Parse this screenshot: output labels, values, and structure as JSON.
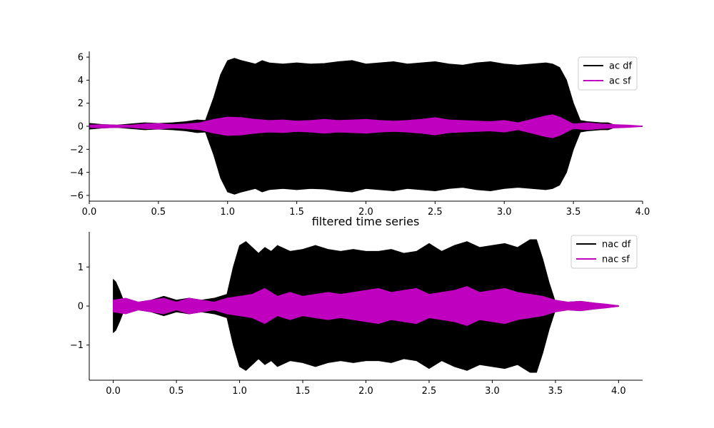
{
  "figure_title": "filtered time series",
  "chart_data": [
    {
      "type": "line",
      "title": "",
      "xlabel": "",
      "ylabel": "",
      "xlim": [
        0.0,
        4.0
      ],
      "ylim": [
        -6.5,
        6.5
      ],
      "xticks": [
        0.0,
        0.5,
        1.0,
        1.5,
        2.0,
        2.5,
        3.0,
        3.5,
        4.0
      ],
      "xtick_labels": [
        "0.0",
        "0.5",
        "1.0",
        "1.5",
        "2.0",
        "2.5",
        "3.0",
        "3.5",
        "4.0"
      ],
      "yticks": [
        -6,
        -4,
        -2,
        0,
        2,
        4,
        6
      ],
      "ytick_labels": [
        "−6",
        "−4",
        "−2",
        "0",
        "2",
        "4",
        "6"
      ],
      "grid": false,
      "legend_position": "top-right",
      "series": [
        {
          "name": "ac df",
          "color": "#000000",
          "envelope_x": [
            0.0,
            0.1,
            0.2,
            0.3,
            0.4,
            0.5,
            0.6,
            0.7,
            0.78,
            0.84,
            0.9,
            0.95,
            1.0,
            1.05,
            1.1,
            1.2,
            1.25,
            1.3,
            1.4,
            1.5,
            1.6,
            1.7,
            1.8,
            1.9,
            2.0,
            2.1,
            2.2,
            2.3,
            2.4,
            2.5,
            2.6,
            2.7,
            2.8,
            2.9,
            3.0,
            3.1,
            3.2,
            3.3,
            3.35,
            3.4,
            3.45,
            3.5,
            3.55,
            3.6,
            3.7,
            3.75,
            3.8,
            3.9,
            4.0
          ],
          "envelope_amplitude": [
            0.25,
            0.15,
            0.1,
            0.2,
            0.3,
            0.25,
            0.3,
            0.4,
            0.55,
            0.5,
            2.5,
            4.5,
            5.7,
            5.9,
            5.7,
            5.4,
            5.7,
            5.5,
            5.4,
            5.5,
            5.4,
            5.45,
            5.6,
            5.7,
            5.4,
            5.5,
            5.6,
            5.4,
            5.5,
            5.6,
            5.4,
            5.3,
            5.5,
            5.6,
            5.4,
            5.3,
            5.4,
            5.5,
            5.4,
            5.1,
            4.0,
            2.0,
            0.5,
            0.4,
            0.3,
            0.3,
            0.1,
            0.05,
            0.02
          ]
        },
        {
          "name": "ac sf",
          "color": "#bf00bf",
          "envelope_x": [
            0.0,
            0.1,
            0.2,
            0.3,
            0.4,
            0.5,
            0.6,
            0.7,
            0.8,
            0.9,
            1.0,
            1.1,
            1.2,
            1.3,
            1.4,
            1.5,
            1.6,
            1.7,
            1.8,
            1.9,
            2.0,
            2.1,
            2.2,
            2.3,
            2.4,
            2.5,
            2.6,
            2.7,
            2.8,
            2.9,
            3.0,
            3.1,
            3.2,
            3.3,
            3.35,
            3.4,
            3.5,
            3.6,
            3.7,
            3.8,
            3.9,
            4.0
          ],
          "envelope_amplitude": [
            0.1,
            0.15,
            0.1,
            0.1,
            0.2,
            0.25,
            0.15,
            0.2,
            0.3,
            0.6,
            0.8,
            0.75,
            0.6,
            0.5,
            0.55,
            0.45,
            0.5,
            0.6,
            0.5,
            0.55,
            0.6,
            0.5,
            0.45,
            0.5,
            0.6,
            0.75,
            0.55,
            0.5,
            0.45,
            0.4,
            0.5,
            0.3,
            0.6,
            0.9,
            1.0,
            0.8,
            0.2,
            0.3,
            0.2,
            0.15,
            0.1,
            0.02
          ]
        }
      ]
    },
    {
      "type": "line",
      "title": "",
      "xlabel": "",
      "ylabel": "",
      "xlim": [
        -0.19,
        4.19
      ],
      "ylim": [
        -1.9,
        1.9
      ],
      "xticks": [
        0.0,
        0.5,
        1.0,
        1.5,
        2.0,
        2.5,
        3.0,
        3.5,
        4.0
      ],
      "xtick_labels": [
        "0.0",
        "0.5",
        "1.0",
        "1.5",
        "2.0",
        "2.5",
        "3.0",
        "3.5",
        "4.0"
      ],
      "yticks": [
        -1,
        0,
        1
      ],
      "ytick_labels": [
        "−1",
        "0",
        "1"
      ],
      "grid": false,
      "legend_position": "top-right",
      "series": [
        {
          "name": "nac df",
          "color": "#000000",
          "envelope_x": [
            0.0,
            0.02,
            0.05,
            0.08,
            0.1,
            0.2,
            0.3,
            0.4,
            0.5,
            0.6,
            0.7,
            0.8,
            0.85,
            0.9,
            0.95,
            1.0,
            1.05,
            1.1,
            1.15,
            1.2,
            1.25,
            1.3,
            1.4,
            1.5,
            1.6,
            1.7,
            1.8,
            1.9,
            2.0,
            2.1,
            2.2,
            2.3,
            2.4,
            2.5,
            2.6,
            2.7,
            2.8,
            2.9,
            3.0,
            3.1,
            3.2,
            3.3,
            3.35,
            3.4,
            3.45,
            3.5,
            3.6,
            3.7,
            3.8,
            3.9,
            4.0
          ],
          "envelope_amplitude": [
            0.68,
            0.62,
            0.4,
            0.15,
            0.1,
            0.1,
            0.15,
            0.25,
            0.15,
            0.2,
            0.15,
            0.2,
            0.25,
            0.3,
            1.0,
            1.55,
            1.65,
            1.5,
            1.35,
            1.5,
            1.4,
            1.55,
            1.4,
            1.45,
            1.55,
            1.45,
            1.4,
            1.45,
            1.4,
            1.4,
            1.45,
            1.35,
            1.4,
            1.6,
            1.4,
            1.55,
            1.65,
            1.5,
            1.55,
            1.6,
            1.5,
            1.7,
            1.7,
            1.2,
            0.6,
            0.1,
            0.1,
            0.12,
            0.08,
            0.04,
            0.01
          ]
        },
        {
          "name": "nac sf",
          "color": "#bf00bf",
          "envelope_x": [
            0.0,
            0.1,
            0.2,
            0.3,
            0.4,
            0.5,
            0.6,
            0.7,
            0.8,
            0.85,
            0.9,
            1.0,
            1.1,
            1.2,
            1.3,
            1.4,
            1.5,
            1.6,
            1.7,
            1.8,
            1.9,
            2.0,
            2.1,
            2.2,
            2.3,
            2.4,
            2.5,
            2.6,
            2.7,
            2.8,
            2.9,
            3.0,
            3.1,
            3.2,
            3.3,
            3.4,
            3.5,
            3.6,
            3.7,
            3.8,
            3.9,
            4.0
          ],
          "envelope_amplitude": [
            0.15,
            0.2,
            0.1,
            0.15,
            0.2,
            0.1,
            0.2,
            0.15,
            0.1,
            0.15,
            0.2,
            0.25,
            0.3,
            0.45,
            0.25,
            0.35,
            0.25,
            0.3,
            0.35,
            0.3,
            0.35,
            0.4,
            0.45,
            0.35,
            0.4,
            0.45,
            0.3,
            0.35,
            0.4,
            0.5,
            0.35,
            0.4,
            0.45,
            0.35,
            0.3,
            0.25,
            0.15,
            0.1,
            0.12,
            0.08,
            0.05,
            0.01
          ]
        }
      ]
    }
  ]
}
